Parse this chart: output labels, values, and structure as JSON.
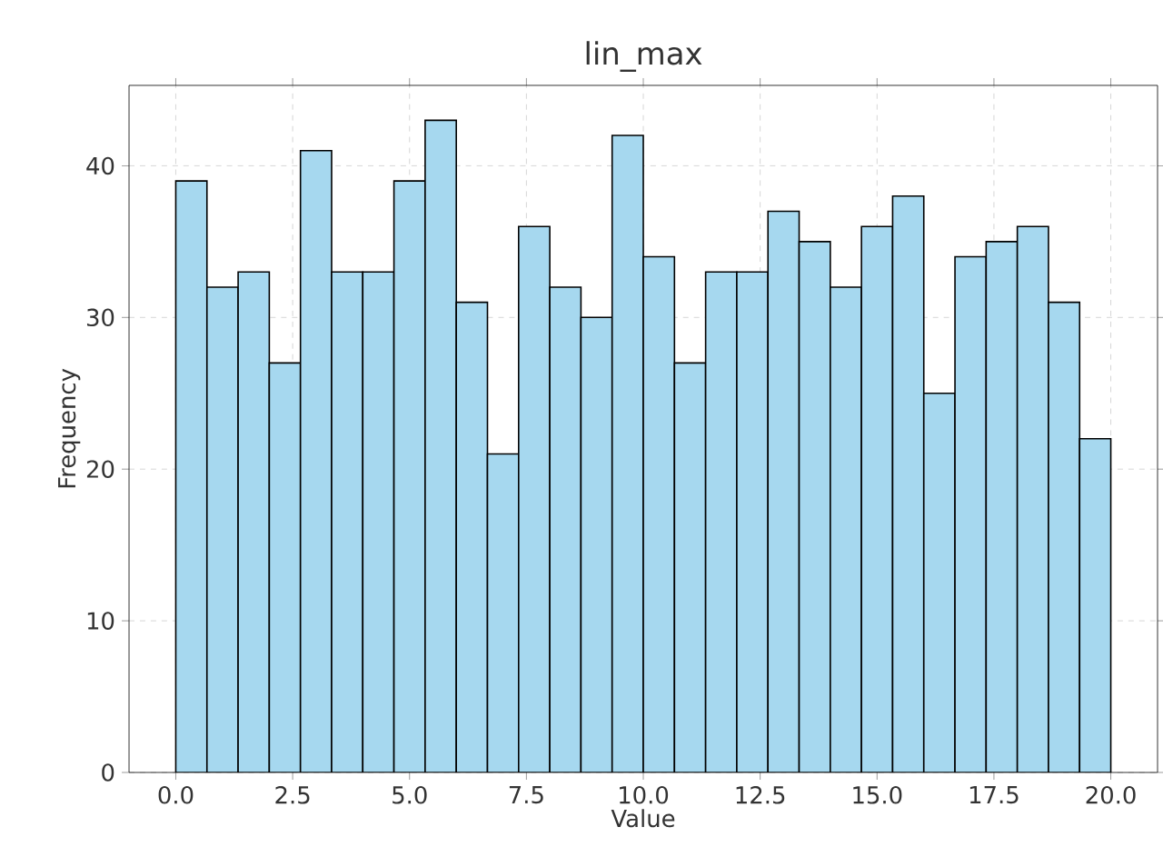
{
  "chart_data": {
    "type": "histogram",
    "title": "lin_max",
    "xlabel": "Value",
    "ylabel": "Frequency",
    "bins": [
      0,
      0.6667,
      1.3333,
      2,
      2.6667,
      3.3333,
      4,
      4.6667,
      5.3333,
      6,
      6.6667,
      7.3333,
      8,
      8.6667,
      9.3333,
      10,
      10.6667,
      11.3333,
      12,
      12.6667,
      13.3333,
      14,
      14.6667,
      15.3333,
      16,
      16.6667,
      17.3333,
      18,
      18.6667,
      19.3333,
      20
    ],
    "values": [
      39,
      32,
      33,
      27,
      41,
      33,
      33,
      39,
      43,
      31,
      21,
      36,
      32,
      30,
      42,
      34,
      27,
      33,
      33,
      37,
      35,
      32,
      36,
      38,
      25,
      34,
      35,
      36,
      31,
      22
    ],
    "color": "#a6d8ef",
    "xlim": [
      -1,
      21
    ],
    "ylim": [
      0,
      45.3
    ],
    "xticks": [
      {
        "value": 0,
        "label": "0.0"
      },
      {
        "value": 2.5,
        "label": "2.5"
      },
      {
        "value": 5,
        "label": "5.0"
      },
      {
        "value": 7.5,
        "label": "7.5"
      },
      {
        "value": 10,
        "label": "10.0"
      },
      {
        "value": 12.5,
        "label": "12.5"
      },
      {
        "value": 15,
        "label": "15.0"
      },
      {
        "value": 17.5,
        "label": "17.5"
      },
      {
        "value": 20,
        "label": "20.0"
      }
    ],
    "yticks": [
      0,
      10,
      20,
      30,
      40
    ],
    "grid": true
  }
}
